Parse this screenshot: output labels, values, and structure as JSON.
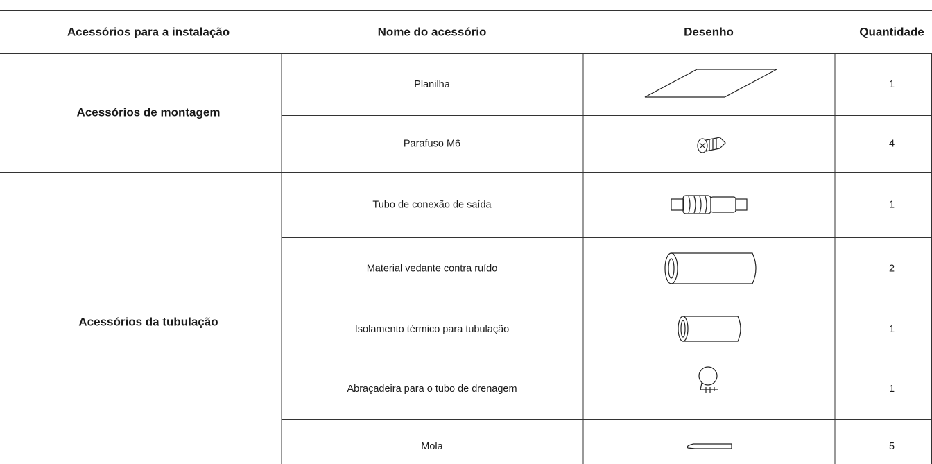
{
  "table": {
    "header": [
      "Acessórios para a instalação",
      "Nome do acessório",
      "Desenho",
      "Quantidade"
    ],
    "groups": [
      {
        "label": "Acessórios de montagem",
        "rows": [
          {
            "name": "Planilha",
            "quantity": 1
          },
          {
            "name": "Parafuso M6",
            "quantity": 4
          }
        ]
      },
      {
        "label": "Acessórios da tubulação",
        "rows": [
          {
            "name": "Tubo de conexão de saída",
            "quantity": 1
          },
          {
            "name": "Material vedante contra ruído",
            "quantity": 2
          },
          {
            "name": "Isolamento térmico para tubulação",
            "quantity": 1
          },
          {
            "name": "Abraçadeira para o tubo de drenagem",
            "quantity": 1
          },
          {
            "name": "Mola",
            "quantity": 5
          }
        ]
      }
    ]
  }
}
